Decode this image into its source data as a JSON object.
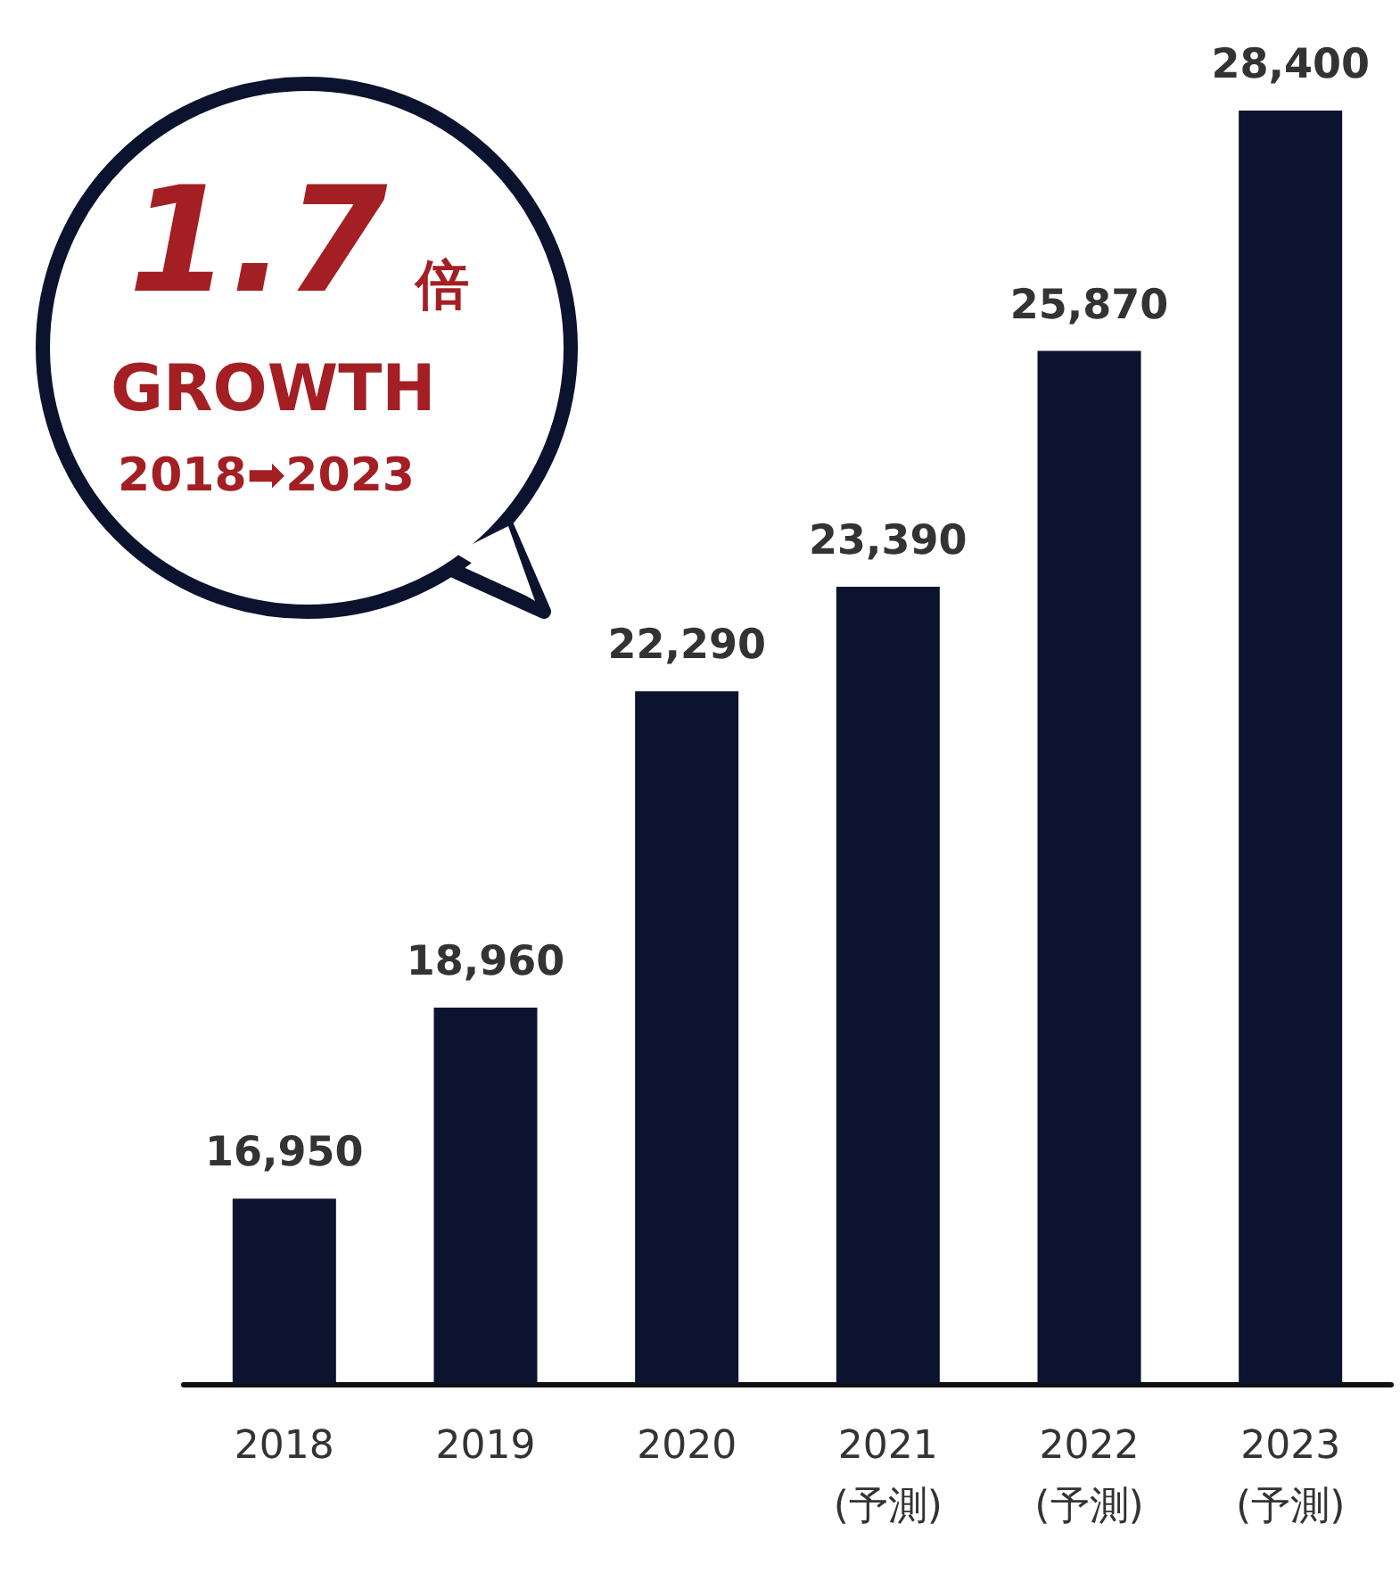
{
  "chart_data": {
    "type": "bar",
    "categories": [
      "2018",
      "2019",
      "2020",
      "2021\n(予測)",
      "2022\n(予測)",
      "2023\n(予測)"
    ],
    "values": [
      16950,
      18960,
      22290,
      23390,
      25870,
      28400
    ],
    "value_labels": [
      "16,950",
      "18,960",
      "22,290",
      "23,390",
      "25,870",
      "28,400"
    ],
    "color": "#0c132e",
    "ylim": [
      15000,
      28400
    ],
    "tick_labels": "x",
    "grid": false,
    "annotations": [
      "1.7",
      "倍",
      "GROWTH",
      "2018➡2023"
    ]
  }
}
